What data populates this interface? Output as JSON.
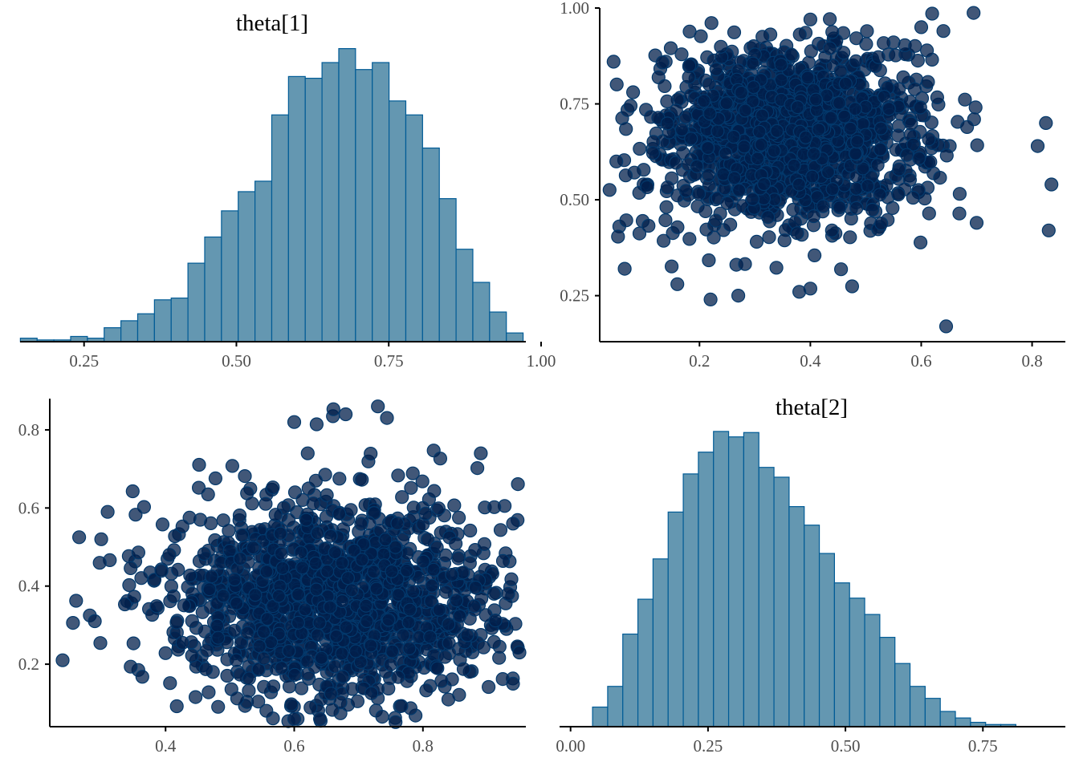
{
  "colors": {
    "hist_fill": "#6497b1",
    "hist_stroke": "#005b96",
    "point_fill": "#011f4b",
    "point_stroke": "#03396c",
    "axis": "#000000",
    "tick_text": "#4d4d4d"
  },
  "chart_data": [
    {
      "type": "bar",
      "panel": "top-left",
      "title": "theta[1]",
      "xlabel": "",
      "ylabel": "",
      "xlim": [
        0.145,
        0.975
      ],
      "bin_width": 0.0275,
      "bin_start": 0.1455,
      "x_ticks": [
        "0.25",
        "0.50",
        "0.75",
        "1.00"
      ],
      "x_tick_values": [
        0.25,
        0.5,
        0.75,
        1.0
      ],
      "counts": [
        2,
        1,
        1,
        3,
        2,
        8,
        12,
        16,
        24,
        25,
        45,
        60,
        75,
        86,
        92,
        130,
        152,
        151,
        160,
        168,
        156,
        160,
        138,
        130,
        111,
        82,
        53,
        34,
        17,
        5
      ]
    },
    {
      "type": "scatter",
      "panel": "top-right",
      "title": "",
      "xlabel": "",
      "ylabel": "",
      "xlim": [
        0.02,
        0.86
      ],
      "ylim": [
        0.13,
        1.0
      ],
      "x_ticks": [
        "0.2",
        "0.4",
        "0.6",
        "0.8"
      ],
      "x_tick_values": [
        0.2,
        0.4,
        0.6,
        0.8
      ],
      "y_ticks": [
        "0.25",
        "0.50",
        "0.75",
        "1.00"
      ],
      "y_tick_values": [
        0.25,
        0.5,
        0.75,
        1.0
      ],
      "x_mean": 0.36,
      "y_mean": 0.67,
      "x_sd": 0.12,
      "y_sd": 0.12,
      "n_points": 1500,
      "notable_points": [
        [
          0.045,
          0.86
        ],
        [
          0.05,
          0.6
        ],
        [
          0.065,
          0.32
        ],
        [
          0.16,
          0.28
        ],
        [
          0.22,
          0.24
        ],
        [
          0.27,
          0.25
        ],
        [
          0.38,
          0.26
        ],
        [
          0.645,
          0.17
        ],
        [
          0.81,
          0.64
        ],
        [
          0.825,
          0.7
        ],
        [
          0.835,
          0.54
        ],
        [
          0.83,
          0.42
        ],
        [
          0.7,
          0.44
        ],
        [
          0.6,
          0.95
        ],
        [
          0.64,
          0.94
        ],
        [
          0.4,
          0.97
        ]
      ]
    },
    {
      "type": "scatter",
      "panel": "bottom-left",
      "title": "",
      "xlabel": "",
      "ylabel": "",
      "xlim": [
        0.22,
        0.96
      ],
      "ylim": [
        0.04,
        0.88
      ],
      "x_ticks": [
        "0.4",
        "0.6",
        "0.8"
      ],
      "x_tick_values": [
        0.4,
        0.6,
        0.8
      ],
      "y_ticks": [
        "0.2",
        "0.4",
        "0.6",
        "0.8"
      ],
      "y_tick_values": [
        0.2,
        0.4,
        0.6,
        0.8
      ],
      "x_mean": 0.66,
      "y_mean": 0.36,
      "x_sd": 0.13,
      "y_sd": 0.13,
      "n_points": 1500,
      "notable_points": [
        [
          0.24,
          0.21
        ],
        [
          0.29,
          0.31
        ],
        [
          0.3,
          0.52
        ],
        [
          0.31,
          0.59
        ],
        [
          0.6,
          0.82
        ],
        [
          0.68,
          0.84
        ],
        [
          0.73,
          0.86
        ],
        [
          0.94,
          0.15
        ],
        [
          0.95,
          0.23
        ],
        [
          0.94,
          0.56
        ],
        [
          0.89,
          0.74
        ],
        [
          0.64,
          0.06
        ],
        [
          0.6,
          0.06
        ]
      ]
    },
    {
      "type": "bar",
      "panel": "bottom-right",
      "title": "theta[2]",
      "xlabel": "",
      "ylabel": "",
      "xlim": [
        -0.02,
        0.9
      ],
      "bin_width": 0.0275,
      "bin_start": 0.04,
      "x_ticks": [
        "0.00",
        "0.25",
        "0.50",
        "0.75"
      ],
      "x_tick_values": [
        0.0,
        0.25,
        0.5,
        0.75
      ],
      "counts": [
        18,
        37,
        85,
        117,
        154,
        197,
        232,
        252,
        271,
        266,
        270,
        238,
        229,
        202,
        185,
        159,
        132,
        118,
        103,
        82,
        58,
        37,
        26,
        14,
        8,
        4,
        2,
        2
      ]
    }
  ]
}
